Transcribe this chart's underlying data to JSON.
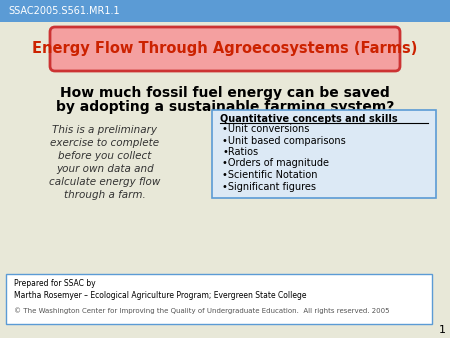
{
  "bg_color": "#e8e8d8",
  "header_color": "#5b9bd5",
  "header_text": "SSAC2005.S561.MR1.1",
  "title_box_text": "Energy Flow Through Agroecosystems (Farms)",
  "title_box_fill": "#f4a0a0",
  "title_box_edge": "#cc3333",
  "main_question_line1": "How much fossil fuel energy can be saved",
  "main_question_line2": "by adopting a sustainable farming system?",
  "italic_text_lines": [
    "This is a preliminary",
    "exercise to complete",
    "before you collect",
    "your own data and",
    "calculate energy flow",
    "through a farm."
  ],
  "skills_title": "Quantitative concepts and skills",
  "skills_items": [
    "•Unit conversions",
    "•Unit based comparisons",
    "•Ratios",
    "•Orders of magnitude",
    "•Scientific Notation",
    "•Significant figures"
  ],
  "skills_box_fill": "#dce9f5",
  "skills_box_edge": "#5b9bd5",
  "footer_line1": "Prepared for SSAC by",
  "footer_line2": "Martha Rosemyer – Ecological Agriculture Program; Evergreen State College",
  "footer_line3": "© The Washington Center for Improving the Quality of Undergraduate Education.  All rights reserved. 2005",
  "footer_box_fill": "#ffffff",
  "footer_box_edge": "#5b9bd5",
  "slide_number": "1"
}
